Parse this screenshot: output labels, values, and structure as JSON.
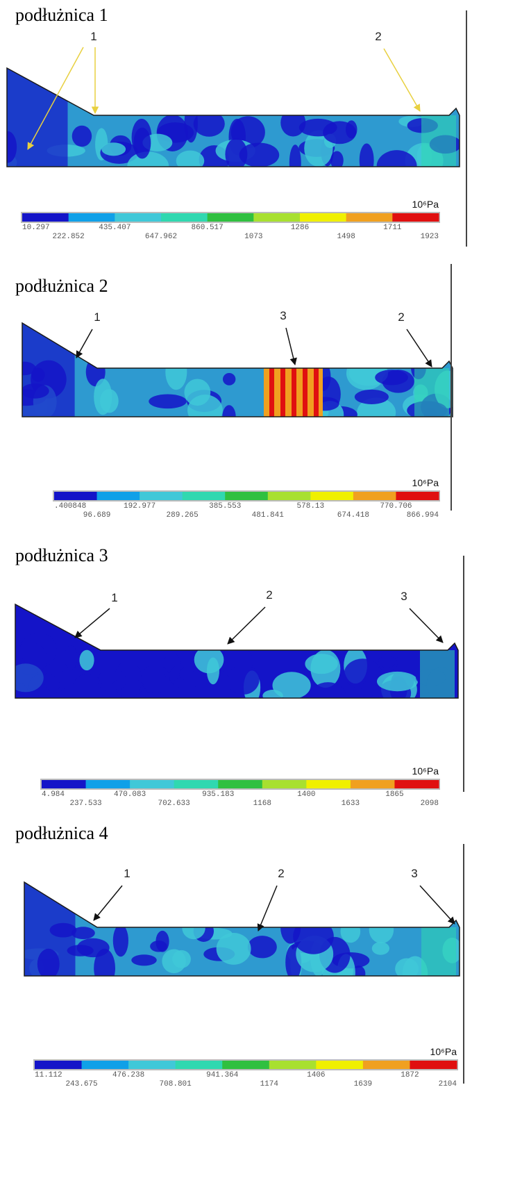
{
  "panels": [
    {
      "title": "podłużnica 1",
      "callouts": [
        "1",
        "2"
      ],
      "colorbar": {
        "unit": "10⁶Pa",
        "labels": [
          "10.297",
          "222.852",
          "435.407",
          "647.962",
          "860.517",
          "1073",
          "1286",
          "1498",
          "1711",
          "1923"
        ]
      }
    },
    {
      "title": "podłużnica 2",
      "callouts": [
        "1",
        "3",
        "2"
      ],
      "colorbar": {
        "unit": "10⁶Pa",
        "labels": [
          ".400848",
          "96.689",
          "192.977",
          "289.265",
          "385.553",
          "481.841",
          "578.13",
          "674.418",
          "770.706",
          "866.994"
        ]
      }
    },
    {
      "title": "podłużnica 3",
      "callouts": [
        "1",
        "2",
        "3"
      ],
      "colorbar": {
        "unit": "10⁶Pa",
        "labels": [
          "4.984",
          "237.533",
          "470.083",
          "702.633",
          "935.183",
          "1168",
          "1400",
          "1633",
          "1865",
          "2098"
        ]
      }
    },
    {
      "title": "podłużnica 4",
      "callouts": [
        "1",
        "2",
        "3"
      ],
      "colorbar": {
        "unit": "10⁶Pa",
        "labels": [
          "11.112",
          "243.675",
          "476.238",
          "708.801",
          "941.364",
          "1174",
          "1406",
          "1639",
          "1872",
          "2104"
        ]
      }
    }
  ],
  "colors": [
    "#1414c8",
    "#10a0e8",
    "#40c8d8",
    "#30d8b0",
    "#30c040",
    "#a8e030",
    "#f0f000",
    "#f0a020",
    "#e01010"
  ]
}
